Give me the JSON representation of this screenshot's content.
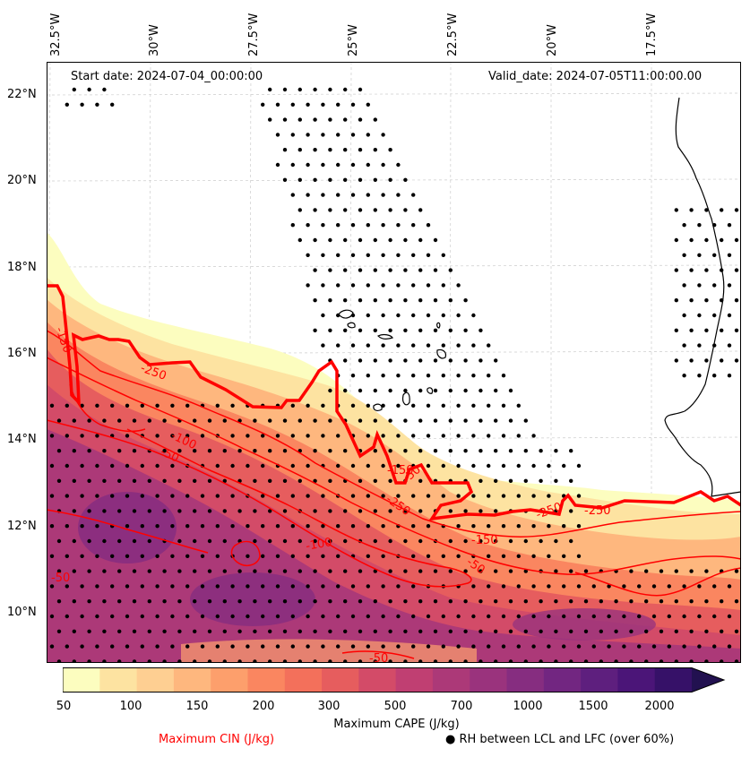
{
  "header": {
    "start_date": "Start date: 2024-07-04_00:00:00",
    "valid_date": "Valid_date: 2024-07-05T11:00:00.00"
  },
  "axes": {
    "lon_labels": [
      "32.5°W",
      "30°W",
      "27.5°W",
      "25°W",
      "22.5°W",
      "20°W",
      "17.5°W"
    ],
    "lat_labels": [
      "22°N",
      "20°N",
      "18°N",
      "16°N",
      "14°N",
      "12°N",
      "10°N"
    ]
  },
  "colorbar": {
    "title": "Maximum CAPE (J/kg)",
    "ticks": [
      "50",
      "100",
      "150",
      "200",
      "300",
      "500",
      "700",
      "1000",
      "1500",
      "2000"
    ],
    "colors": [
      "#fcfdbf",
      "#fde3a1",
      "#fecf92",
      "#feb77e",
      "#fd9f6c",
      "#fa8660",
      "#f3705b",
      "#e65d5e",
      "#d34b68",
      "#c03f72",
      "#ac3978",
      "#9a337d",
      "#862d80",
      "#722681",
      "#5e1f7e",
      "#4b1578",
      "#361168",
      "#221150"
    ]
  },
  "legend": {
    "cin_label": "Maximum CIN (J/kg)",
    "cin_color": "#ff0000",
    "rh_label": "RH between LCL and LFC (over 60%)",
    "rh_marker": "●"
  },
  "contour_labels": [
    "-150",
    "-250",
    "-100",
    "-50",
    "-250",
    "-50",
    "-250",
    "-150",
    "-50",
    "-100",
    "-150",
    "-50",
    "-250",
    "-50"
  ]
}
